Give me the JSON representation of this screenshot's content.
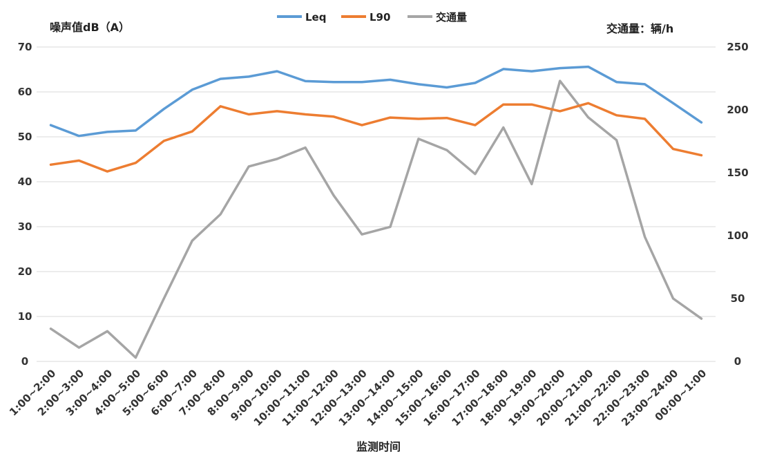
{
  "chart_data": {
    "type": "line",
    "ylabel_left": "噪声值dB（A）",
    "ylabel_right": "交通量：辆/h",
    "xlabel": "监测时间",
    "ylim_left": [
      0,
      70
    ],
    "ylim_right": [
      0,
      250
    ],
    "yticks_left": [
      "0",
      "10",
      "20",
      "30",
      "40",
      "50",
      "60",
      "70"
    ],
    "yticks_right": [
      "0",
      "50",
      "100",
      "150",
      "200",
      "250"
    ],
    "grid": true,
    "legend_position": "top",
    "categories": [
      "1:00~2:00",
      "2:00~3:00",
      "3:00~4:00",
      "4:00~5:00",
      "5:00~6:00",
      "6:00~7:00",
      "7:00~8:00",
      "8:00~9:00",
      "9:00~10:00",
      "10:00~11:00",
      "11:00~12:00",
      "12:00~13:00",
      "13:00~14:00",
      "14:00~15:00",
      "15:00~16:00",
      "16:00~17:00",
      "17:00~18:00",
      "18:00~19:00",
      "19:00~20:00",
      "20:00~21:00",
      "21:00~22:00",
      "22:00~23:00",
      "23:00~24:00",
      "00:00~1:00"
    ],
    "series": [
      {
        "name": "Leq",
        "axis": "left",
        "color": "#5b9bd5",
        "values": [
          52.6,
          50.2,
          51.1,
          51.4,
          56.2,
          60.5,
          62.9,
          63.4,
          64.6,
          62.4,
          62.2,
          62.2,
          62.7,
          61.7,
          61.0,
          62.0,
          65.1,
          64.6,
          65.3,
          65.6,
          62.2,
          61.7,
          57.5,
          53.2
        ]
      },
      {
        "name": "L90",
        "axis": "left",
        "color": "#ed7d31",
        "values": [
          43.8,
          44.7,
          42.3,
          44.2,
          49.1,
          51.2,
          56.8,
          55.0,
          55.7,
          55.0,
          54.5,
          52.6,
          54.3,
          54.0,
          54.2,
          52.6,
          57.2,
          57.2,
          55.7,
          57.5,
          54.8,
          54.0,
          47.3,
          45.9
        ]
      },
      {
        "name": "交通量",
        "axis": "right",
        "color": "#a5a5a5",
        "values": [
          26,
          11,
          24,
          3,
          50,
          96,
          117,
          155,
          161,
          170,
          132,
          101,
          107,
          177,
          168,
          149,
          186,
          141,
          223,
          194,
          176,
          99,
          50,
          34
        ]
      }
    ]
  }
}
